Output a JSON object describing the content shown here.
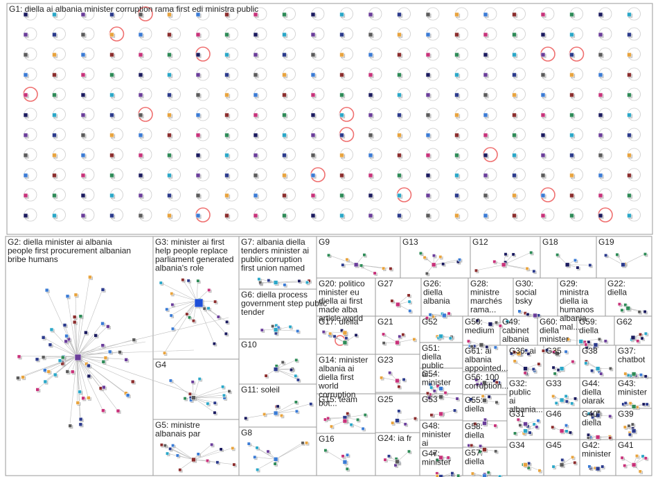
{
  "groups": [
    {
      "id": "g1",
      "label": "G1: diella ai albania minister corruption rama first edi ministra public"
    },
    {
      "id": "g2",
      "label": "G2: diella minister ai albania people first procurement albanian bribe humans"
    },
    {
      "id": "g3",
      "label": "G3: minister ai first help people replace parliament generated albania's role"
    },
    {
      "id": "g7",
      "label": "G7: albania diella tenders minister ai public corruption first union named"
    },
    {
      "id": "g9",
      "label": "G9"
    },
    {
      "id": "g13",
      "label": "G13"
    },
    {
      "id": "g12",
      "label": "G12"
    },
    {
      "id": "g18",
      "label": "G18"
    },
    {
      "id": "g19",
      "label": "G19"
    },
    {
      "id": "g6",
      "label": "G6: diella process government step public tender"
    },
    {
      "id": "g20",
      "label": "G20: politico minister eu diella ai first made alba article world"
    },
    {
      "id": "g27",
      "label": "G27"
    },
    {
      "id": "g26",
      "label": "G26: diella albania"
    },
    {
      "id": "g28",
      "label": "G28: ministre marchés rama..."
    },
    {
      "id": "g30",
      "label": "G30: social bsky"
    },
    {
      "id": "g29",
      "label": "G29: ministra diella ia humanos albania mal..."
    },
    {
      "id": "g22",
      "label": "G22: diella"
    },
    {
      "id": "g10",
      "label": "G10"
    },
    {
      "id": "g17",
      "label": "G17: diella"
    },
    {
      "id": "g21",
      "label": "G21"
    },
    {
      "id": "g52",
      "label": "G52"
    },
    {
      "id": "g50",
      "label": "G50: medium"
    },
    {
      "id": "g49",
      "label": "G49: cabinet albania"
    },
    {
      "id": "g60",
      "label": "G60: diella minister"
    },
    {
      "id": "g59",
      "label": "G59: diella"
    },
    {
      "id": "g62",
      "label": "G62"
    },
    {
      "id": "g4",
      "label": "G4"
    },
    {
      "id": "g11",
      "label": "G11: soleil"
    },
    {
      "id": "g51",
      "label": "G51: diella public ai..."
    },
    {
      "id": "g14",
      "label": "G14: minister albania ai diella first world corruption bot..."
    },
    {
      "id": "g23",
      "label": "G23"
    },
    {
      "id": "g54",
      "label": "G54: minister"
    },
    {
      "id": "g61",
      "label": "G61: ai albania appointed..."
    },
    {
      "id": "g36",
      "label": "G36: ai"
    },
    {
      "id": "g35",
      "label": "G35"
    },
    {
      "id": "g38",
      "label": "G38"
    },
    {
      "id": "g37",
      "label": "G37: chatbot"
    },
    {
      "id": "g56",
      "label": "G56: 100 corruption..."
    },
    {
      "id": "g32",
      "label": "G32: public ai albania..."
    },
    {
      "id": "g33",
      "label": "G33"
    },
    {
      "id": "g44",
      "label": "G44: diella olarak"
    },
    {
      "id": "g43",
      "label": "G43: minister"
    },
    {
      "id": "g15",
      "label": "G15: team"
    },
    {
      "id": "g25",
      "label": "G25"
    },
    {
      "id": "g53",
      "label": "G53"
    },
    {
      "id": "g55",
      "label": "G55: diella"
    },
    {
      "id": "g31",
      "label": "G31"
    },
    {
      "id": "g46",
      "label": "G46"
    },
    {
      "id": "g40",
      "label": "G40: diella"
    },
    {
      "id": "g39",
      "label": "G39"
    },
    {
      "id": "g5",
      "label": "G5: ministre albanais par"
    },
    {
      "id": "g8",
      "label": "G8"
    },
    {
      "id": "g48",
      "label": "G48: minister ai"
    },
    {
      "id": "g58",
      "label": "G58: diella"
    },
    {
      "id": "g16",
      "label": "G16"
    },
    {
      "id": "g24",
      "label": "G24: ia fr"
    },
    {
      "id": "g47",
      "label": "G47: minister"
    },
    {
      "id": "g57",
      "label": "G57: diella"
    },
    {
      "id": "g34",
      "label": "G34"
    },
    {
      "id": "g45",
      "label": "G45"
    },
    {
      "id": "g42",
      "label": "G42: minister"
    },
    {
      "id": "g41",
      "label": "G41"
    }
  ],
  "colors": {
    "box_border": "#9a9a9a",
    "edge": "#bdbdbd",
    "self_loop": "#cccccc",
    "self_loop_highlight": "#ef6f6f",
    "node_palette": [
      "#1a1a5e",
      "#2b3a8c",
      "#3a7bd5",
      "#2e8b57",
      "#6a3d9a",
      "#e8a33d",
      "#c8327a",
      "#2aa7c8",
      "#5b5b5b",
      "#8c2d2d"
    ]
  }
}
